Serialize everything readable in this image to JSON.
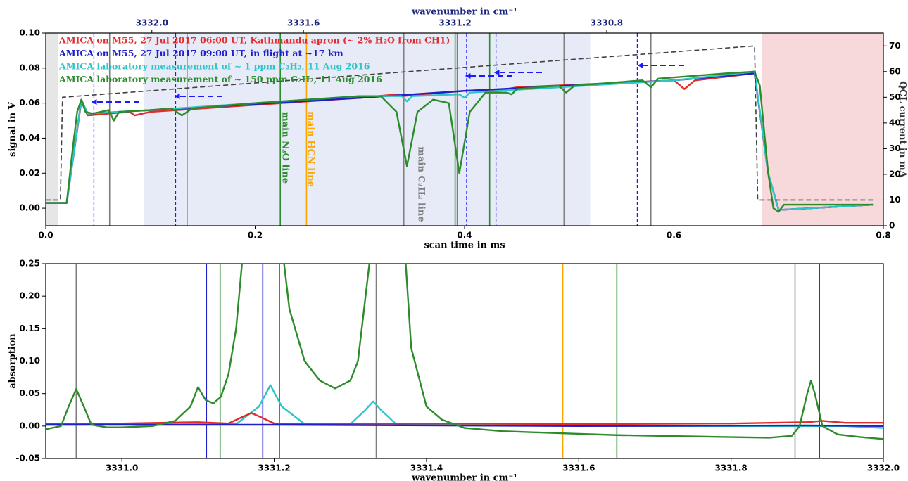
{
  "chart_data": [
    {
      "type": "line",
      "xlabel": "scan time in ms",
      "ylabel": "signal in V",
      "y2label": "QCL current in mA",
      "x2label": "wavenumber in cm⁻¹",
      "xlim": [
        0,
        0.8
      ],
      "xticks": [
        {
          "value": 0,
          "label": "0.0"
        },
        0.2,
        0.4,
        0.6,
        0.8
      ],
      "ylim": [
        -0.01,
        0.1
      ],
      "yticks": [
        {
          "value": 0,
          "label": "0.00"
        },
        0.02,
        0.04,
        0.06,
        0.08,
        {
          "value": 0.1,
          "label": "0.10"
        }
      ],
      "y2lim": [
        0,
        75
      ],
      "y2ticks": [
        0,
        10,
        20,
        30,
        40,
        50,
        60,
        70
      ],
      "x2lim": [
        3332.28,
        3330.07
      ],
      "x2ticks": [
        {
          "value": 3332.0,
          "label": "3332.0"
        },
        3331.6,
        3331.2,
        3330.8
      ],
      "shaded_regions": [
        {
          "x": [
            0,
            0.012
          ],
          "color": "#e6e6e6"
        },
        {
          "x": [
            0.094,
            0.52
          ],
          "color": "#e6ebf7"
        },
        {
          "x": [
            0.684,
            0.8
          ],
          "color": "#f7d9dc"
        }
      ],
      "vlines": [
        {
          "x": 0.046,
          "color": "#1a1aff",
          "dashed": true
        },
        {
          "x": 0.124,
          "color": "#1a1aff",
          "dashed": true
        },
        {
          "x": 0.402,
          "color": "#1a1aff",
          "dashed": true
        },
        {
          "x": 0.43,
          "color": "#1a1aff",
          "dashed": true
        },
        {
          "x": 0.565,
          "color": "#1a1aff",
          "dashed": true
        },
        {
          "x": 0.061,
          "color": "#7f7f7f"
        },
        {
          "x": 0.135,
          "color": "#7f7f7f"
        },
        {
          "x": 0.342,
          "color": "#7f7f7f"
        },
        {
          "x": 0.393,
          "color": "#7f7f7f"
        },
        {
          "x": 0.495,
          "color": "#7f7f7f"
        },
        {
          "x": 0.578,
          "color": "#7f7f7f"
        },
        {
          "x": 0.224,
          "color": "#2c8c2c"
        },
        {
          "x": 0.391,
          "color": "#2c8c2c"
        },
        {
          "x": 0.424,
          "color": "#2c8c2c"
        },
        {
          "x": 0.249,
          "color": "#ffa500"
        }
      ],
      "annotations": [
        {
          "text": "main N₂O line",
          "color": "#2c8c2c"
        },
        {
          "text": "main HCN line",
          "color": "#ffa500"
        },
        {
          "text": "main C₂H₂ line",
          "color": "#7f7f7f"
        }
      ],
      "series": [
        {
          "name": "AMICA on M55, 27 Jul 2017 06:00 UT, Kathmandu apron (~ 2% H₂O from CH1)",
          "color": "#e32b2b",
          "x": [
            0,
            0.02,
            0.034,
            0.04,
            0.08,
            0.085,
            0.1,
            0.3,
            0.335,
            0.34,
            0.4,
            0.44,
            0.45,
            0.6,
            0.61,
            0.62,
            0.677,
            0.69,
            0.7,
            0.79
          ],
          "values": [
            0.003,
            0.003,
            0.061,
            0.053,
            0.055,
            0.053,
            0.055,
            0.063,
            0.065,
            0.064,
            0.067,
            0.068,
            0.069,
            0.073,
            0.068,
            0.073,
            0.077,
            0.02,
            -0.001,
            0.002
          ]
        },
        {
          "name": "AMICA on M55, 27 Jul 2017 09:00 UT, in flight at ~17 km",
          "color": "#1f1fcc",
          "x": [
            0,
            0.02,
            0.034,
            0.04,
            0.1,
            0.3,
            0.4,
            0.6,
            0.677,
            0.69,
            0.7,
            0.79
          ],
          "values": [
            0.003,
            0.003,
            0.062,
            0.054,
            0.056,
            0.063,
            0.067,
            0.073,
            0.077,
            0.02,
            -0.001,
            0.002
          ]
        },
        {
          "name": "AMICA laboratory measurement of ~ 1 ppm C₂H₂, 11 Aug 2016",
          "color": "#2ec4c9",
          "x": [
            0,
            0.02,
            0.034,
            0.04,
            0.1,
            0.3,
            0.34,
            0.345,
            0.35,
            0.395,
            0.4,
            0.405,
            0.6,
            0.677,
            0.69,
            0.7,
            0.79
          ],
          "values": [
            0.003,
            0.003,
            0.062,
            0.054,
            0.056,
            0.064,
            0.064,
            0.061,
            0.064,
            0.065,
            0.063,
            0.066,
            0.073,
            0.078,
            0.02,
            -0.001,
            0.002
          ]
        },
        {
          "name": "AMICA laboratory measurement of ~ 150 ppm C₂H₂, 11 Aug 2016",
          "color": "#2c8c2c",
          "x": [
            0,
            0.01,
            0.02,
            0.025,
            0.03,
            0.034,
            0.038,
            0.045,
            0.06,
            0.065,
            0.07,
            0.1,
            0.12,
            0.13,
            0.14,
            0.2,
            0.3,
            0.32,
            0.335,
            0.345,
            0.355,
            0.37,
            0.385,
            0.395,
            0.405,
            0.42,
            0.44,
            0.445,
            0.45,
            0.49,
            0.497,
            0.505,
            0.57,
            0.578,
            0.585,
            0.65,
            0.677,
            0.682,
            0.69,
            0.695,
            0.7,
            0.705,
            0.75,
            0.79
          ],
          "values": [
            0.003,
            0.003,
            0.003,
            0.03,
            0.055,
            0.062,
            0.055,
            0.054,
            0.056,
            0.05,
            0.055,
            0.056,
            0.057,
            0.053,
            0.057,
            0.06,
            0.064,
            0.064,
            0.055,
            0.024,
            0.055,
            0.062,
            0.06,
            0.02,
            0.055,
            0.066,
            0.066,
            0.065,
            0.068,
            0.07,
            0.066,
            0.07,
            0.073,
            0.069,
            0.074,
            0.077,
            0.078,
            0.07,
            0.02,
            0.0,
            -0.002,
            0.002,
            0.002,
            0.002
          ]
        },
        {
          "color": "#404040",
          "axis": "y2",
          "dashed": true,
          "x": [
            0,
            0.014,
            0.016,
            0.677,
            0.68,
            0.79
          ],
          "values": [
            10,
            10,
            50,
            70,
            10,
            10
          ]
        }
      ]
    },
    {
      "type": "line",
      "xlabel": "wavenumber in cm⁻¹",
      "ylabel": "absorption",
      "xlim": [
        3330.9,
        3332.0
      ],
      "xticks": [
        {
          "value": 3331.0,
          "label": "3331.0"
        },
        3331.2,
        3331.4,
        3331.6,
        3331.8,
        {
          "value": 3332.0,
          "label": "3332.0"
        }
      ],
      "ylim": [
        -0.05,
        0.25
      ],
      "yticks": [
        -0.05,
        {
          "value": 0,
          "label": "0.00"
        },
        0.05,
        {
          "value": 0.1,
          "label": "0.10"
        },
        0.15,
        {
          "value": 0.2,
          "label": "0.20"
        },
        0.25
      ],
      "vlines": [
        {
          "x": 3330.94,
          "color": "#7f7f7f"
        },
        {
          "x": 3331.334,
          "color": "#7f7f7f"
        },
        {
          "x": 3331.884,
          "color": "#7f7f7f"
        },
        {
          "x": 3331.111,
          "color": "#1f1fcc"
        },
        {
          "x": 3331.185,
          "color": "#1f1fcc"
        },
        {
          "x": 3331.916,
          "color": "#1f1fcc"
        },
        {
          "x": 3331.129,
          "color": "#2c8c2c"
        },
        {
          "x": 3331.207,
          "color": "#2c8c2c"
        },
        {
          "x": 3331.65,
          "color": "#2c8c2c"
        },
        {
          "x": 3331.579,
          "color": "#ffa500"
        }
      ],
      "series": [
        {
          "color": "#2ec4c9",
          "x": [
            3330.9,
            3331.15,
            3331.18,
            3331.195,
            3331.21,
            3331.24,
            3331.3,
            3331.32,
            3331.33,
            3331.34,
            3331.36,
            3331.7,
            3331.95,
            3332.0
          ],
          "values": [
            0.002,
            0.003,
            0.03,
            0.063,
            0.03,
            0.003,
            0.003,
            0.025,
            0.038,
            0.025,
            0.003,
            0.0,
            0.0,
            -0.003
          ]
        },
        {
          "color": "#e32b2b",
          "x": [
            3330.9,
            3331.0,
            3331.1,
            3331.14,
            3331.16,
            3331.17,
            3331.18,
            3331.2,
            3331.4,
            3331.6,
            3331.8,
            3331.9,
            3331.92,
            3331.95,
            3332.0
          ],
          "values": [
            0.003,
            0.004,
            0.006,
            0.004,
            0.015,
            0.02,
            0.015,
            0.004,
            0.004,
            0.003,
            0.004,
            0.006,
            0.008,
            0.005,
            0.005
          ]
        },
        {
          "color": "#1f1fcc",
          "x": [
            3330.9,
            3331.2,
            3331.6,
            3331.9,
            3332.0
          ],
          "values": [
            0.002,
            0.002,
            0.0,
            0.001,
            0.0
          ]
        },
        {
          "color": "#2c8c2c",
          "x": [
            3330.9,
            3330.92,
            3330.93,
            3330.94,
            3330.95,
            3330.96,
            3330.98,
            3331.0,
            3331.04,
            3331.07,
            3331.09,
            3331.1,
            3331.11,
            3331.12,
            3331.13,
            3331.14,
            3331.15,
            3331.16,
            3331.21,
            3331.22,
            3331.24,
            3331.26,
            3331.28,
            3331.3,
            3331.31,
            3331.32,
            3331.33,
            3331.37,
            3331.38,
            3331.4,
            3331.42,
            3331.45,
            3331.5,
            3331.55,
            3331.6,
            3331.65,
            3331.7,
            3331.75,
            3331.8,
            3331.85,
            3331.88,
            3331.89,
            3331.9,
            3331.905,
            3331.91,
            3331.92,
            3331.94,
            3331.97,
            3332.0
          ],
          "values": [
            -0.005,
            0.0,
            0.03,
            0.057,
            0.03,
            0.002,
            -0.002,
            -0.002,
            0.0,
            0.008,
            0.03,
            0.06,
            0.04,
            0.035,
            0.045,
            0.08,
            0.15,
            0.28,
            0.28,
            0.18,
            0.1,
            0.07,
            0.058,
            0.07,
            0.1,
            0.2,
            0.3,
            0.3,
            0.12,
            0.03,
            0.01,
            -0.003,
            -0.008,
            -0.01,
            -0.012,
            -0.014,
            -0.015,
            -0.016,
            -0.017,
            -0.018,
            -0.015,
            0.0,
            0.05,
            0.07,
            0.05,
            0.0,
            -0.013,
            -0.017,
            -0.02
          ]
        }
      ]
    }
  ]
}
